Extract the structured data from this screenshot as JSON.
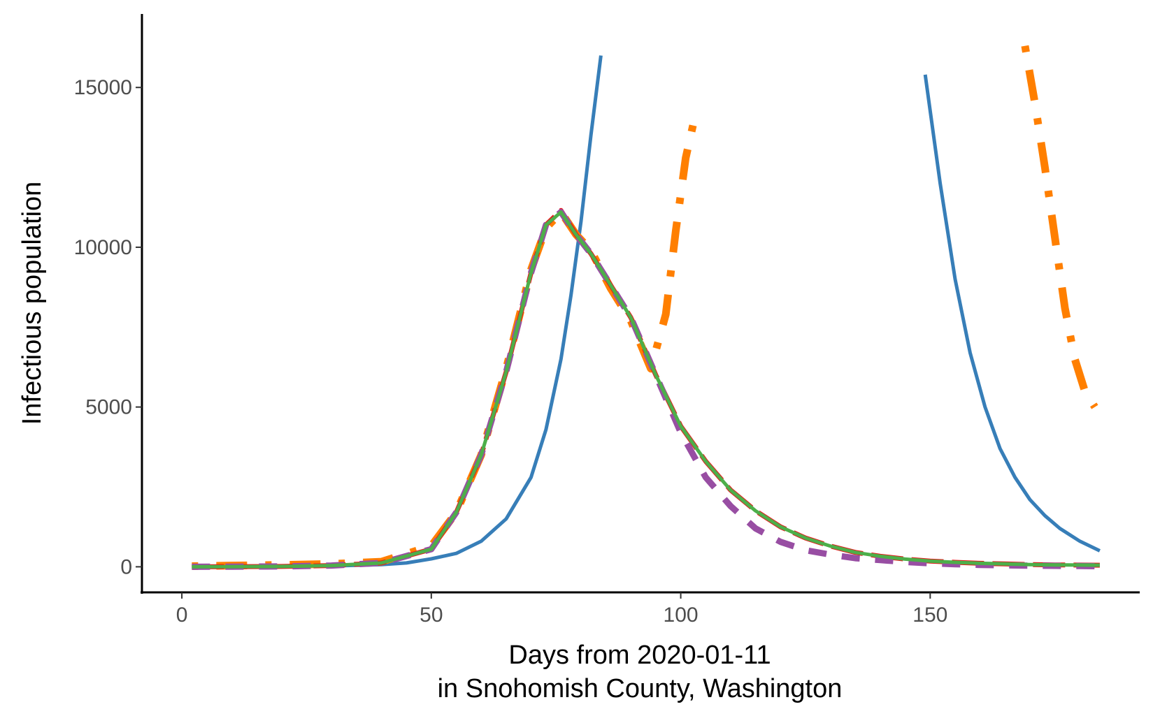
{
  "chart_data": {
    "type": "line",
    "xlabel": "Days from 2020-01-11",
    "xlabel2": "in Snohomish County, Washington",
    "ylabel": "Infectious population",
    "xlim": [
      -8,
      192
    ],
    "ylim": [
      -800,
      17300
    ],
    "x_ticks": [
      0,
      50,
      100,
      150
    ],
    "y_ticks": [
      0,
      5000,
      10000,
      15000
    ],
    "grid": false,
    "legend": "none",
    "series": [
      {
        "color": "#377eb8",
        "dash": "solid",
        "width": 5,
        "segments": [
          [
            [
              2,
              0
            ],
            [
              10,
              3
            ],
            [
              20,
              8
            ],
            [
              30,
              25
            ],
            [
              40,
              70
            ],
            [
              45,
              120
            ],
            [
              50,
              250
            ],
            [
              55,
              420
            ],
            [
              60,
              800
            ],
            [
              65,
              1500
            ],
            [
              70,
              2800
            ],
            [
              73,
              4300
            ],
            [
              76,
              6500
            ],
            [
              78,
              8500
            ],
            [
              80,
              10800
            ],
            [
              82,
              13500
            ],
            [
              84,
              16000
            ]
          ],
          [
            [
              149,
              15400
            ],
            [
              152,
              12000
            ],
            [
              155,
              9000
            ],
            [
              158,
              6700
            ],
            [
              161,
              5000
            ],
            [
              164,
              3700
            ],
            [
              167,
              2800
            ],
            [
              170,
              2100
            ],
            [
              173,
              1600
            ],
            [
              176,
              1200
            ],
            [
              180,
              800
            ],
            [
              184,
              500
            ]
          ]
        ]
      },
      {
        "color": "#ff7f00",
        "dash": "dotdash",
        "width": 11,
        "segments": [
          [
            [
              2,
              20
            ],
            [
              10,
              40
            ],
            [
              20,
              60
            ],
            [
              30,
              90
            ],
            [
              40,
              160
            ],
            [
              50,
              650
            ],
            [
              55,
              1700
            ],
            [
              60,
              3500
            ],
            [
              65,
              6200
            ],
            [
              70,
              9300
            ],
            [
              73,
              10600
            ],
            [
              76,
              11100
            ],
            [
              79,
              10400
            ],
            [
              82,
              9900
            ],
            [
              86,
              8700
            ],
            [
              90,
              7700
            ],
            [
              94,
              6200
            ],
            [
              97,
              7900
            ],
            [
              99,
              10500
            ],
            [
              101,
              12800
            ],
            [
              103,
              14200
            ]
          ],
          [
            [
              169,
              16300
            ],
            [
              171,
              14500
            ],
            [
              173,
              12500
            ],
            [
              175,
              10300
            ],
            [
              177,
              8100
            ],
            [
              179,
              6500
            ],
            [
              181,
              5500
            ],
            [
              183,
              5000
            ]
          ]
        ]
      },
      {
        "color": "#e41a1c",
        "dash": "longdash",
        "width": 7,
        "segments": [
          [
            [
              2,
              0
            ],
            [
              10,
              5
            ],
            [
              20,
              10
            ],
            [
              30,
              40
            ],
            [
              40,
              120
            ],
            [
              50,
              550
            ],
            [
              55,
              1700
            ],
            [
              60,
              3500
            ],
            [
              65,
              6100
            ],
            [
              70,
              9200
            ],
            [
              73,
              10700
            ],
            [
              76,
              11150
            ],
            [
              79,
              10400
            ],
            [
              82,
              9800
            ],
            [
              86,
              8800
            ],
            [
              90,
              7800
            ],
            [
              95,
              6000
            ],
            [
              100,
              4400
            ],
            [
              105,
              3300
            ],
            [
              110,
              2400
            ],
            [
              115,
              1750
            ],
            [
              120,
              1250
            ],
            [
              125,
              900
            ],
            [
              130,
              650
            ],
            [
              135,
              450
            ],
            [
              140,
              330
            ],
            [
              145,
              240
            ],
            [
              150,
              180
            ],
            [
              155,
              140
            ],
            [
              160,
              110
            ],
            [
              165,
              90
            ],
            [
              170,
              70
            ],
            [
              175,
              60
            ],
            [
              180,
              55
            ],
            [
              184,
              50
            ]
          ]
        ]
      },
      {
        "color": "#984ea3",
        "dash": "dash",
        "width": 9,
        "segments": [
          [
            [
              2,
              0
            ],
            [
              10,
              5
            ],
            [
              20,
              10
            ],
            [
              30,
              40
            ],
            [
              40,
              120
            ],
            [
              50,
              550
            ],
            [
              55,
              1700
            ],
            [
              60,
              3500
            ],
            [
              65,
              6100
            ],
            [
              70,
              9200
            ],
            [
              73,
              10700
            ],
            [
              76,
              11100
            ],
            [
              79,
              10400
            ],
            [
              82,
              9800
            ],
            [
              86,
              8800
            ],
            [
              90,
              7800
            ],
            [
              95,
              6000
            ],
            [
              100,
              4200
            ],
            [
              105,
              2800
            ],
            [
              110,
              1900
            ],
            [
              115,
              1200
            ],
            [
              120,
              780
            ],
            [
              125,
              520
            ],
            [
              130,
              380
            ],
            [
              135,
              270
            ],
            [
              140,
              210
            ],
            [
              145,
              150
            ],
            [
              150,
              110
            ],
            [
              155,
              80
            ],
            [
              160,
              60
            ],
            [
              165,
              45
            ],
            [
              170,
              35
            ],
            [
              175,
              30
            ],
            [
              180,
              25
            ],
            [
              184,
              20
            ]
          ]
        ]
      },
      {
        "color": "#4daf4a",
        "dash": "solid",
        "width": 5,
        "segments": [
          [
            [
              2,
              0
            ],
            [
              10,
              5
            ],
            [
              20,
              10
            ],
            [
              30,
              40
            ],
            [
              40,
              120
            ],
            [
              50,
              550
            ],
            [
              55,
              1700
            ],
            [
              60,
              3500
            ],
            [
              65,
              6100
            ],
            [
              70,
              9200
            ],
            [
              73,
              10700
            ],
            [
              76,
              11100
            ],
            [
              79,
              10400
            ],
            [
              82,
              9800
            ],
            [
              86,
              8800
            ],
            [
              90,
              7800
            ],
            [
              95,
              6000
            ],
            [
              100,
              4400
            ],
            [
              105,
              3300
            ],
            [
              110,
              2400
            ],
            [
              115,
              1750
            ],
            [
              120,
              1250
            ],
            [
              125,
              900
            ],
            [
              130,
              650
            ],
            [
              135,
              450
            ],
            [
              140,
              330
            ],
            [
              145,
              240
            ],
            [
              150,
              180
            ],
            [
              155,
              140
            ],
            [
              160,
              110
            ],
            [
              165,
              90
            ],
            [
              170,
              70
            ],
            [
              175,
              60
            ],
            [
              180,
              55
            ],
            [
              184,
              50
            ]
          ]
        ]
      }
    ]
  }
}
